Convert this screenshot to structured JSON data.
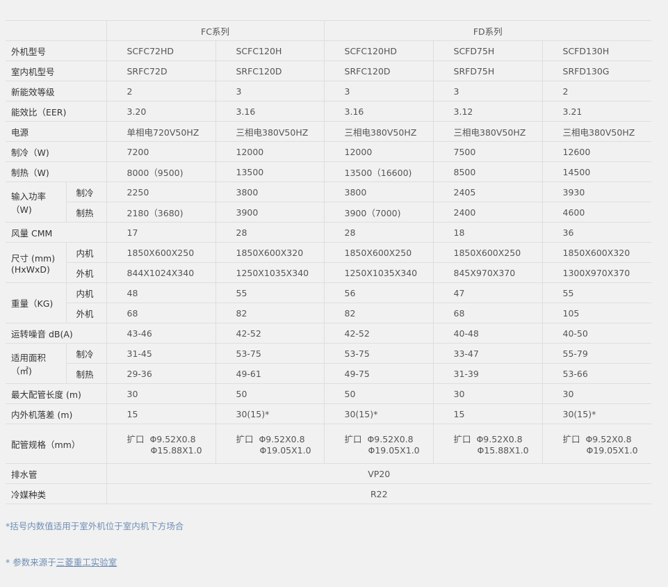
{
  "header": {
    "fc_series": "FC系列",
    "fd_series": "FD系列"
  },
  "rows": [
    {
      "label": "外机型号",
      "values": [
        "SCFC72HD",
        "SCFC120H",
        "SCFC120HD",
        "SCFD75H",
        "SCFD130H"
      ]
    },
    {
      "label": "室内机型号",
      "values": [
        "SRFC72D",
        "SRFC120D",
        "SRFC120D",
        "SRFD75H",
        "SRFD130G"
      ]
    },
    {
      "label": "新能效等级",
      "values": [
        "2",
        "3",
        "3",
        "3",
        "2"
      ]
    },
    {
      "label": "能效比（EER)",
      "values": [
        "3.20",
        "3.16",
        "3.16",
        "3.12",
        "3.21"
      ]
    },
    {
      "label": "电源",
      "values": [
        "单相电720V50HZ",
        "三相电380V50HZ",
        "三相电380V50HZ",
        "三相电380V50HZ",
        "三相电380V50HZ"
      ]
    },
    {
      "label": "制冷（W)",
      "values": [
        "7200",
        "12000",
        "12000",
        "7500",
        "12600"
      ]
    },
    {
      "label": "制热（W)",
      "values": [
        "8000（9500)",
        "13500",
        "13500（16600)",
        "8500",
        "14500"
      ]
    },
    {
      "label": "输入功率\n（W)",
      "subs": [
        {
          "label": "制冷",
          "values": [
            "2250",
            "3800",
            "3800",
            "2405",
            "3930"
          ]
        },
        {
          "label": "制热",
          "values": [
            "2180（3680)",
            "3900",
            "3900（7000)",
            "2400",
            "4600"
          ]
        }
      ]
    },
    {
      "label": "风量 CMM",
      "values": [
        "17",
        "28",
        "28",
        "18",
        "36"
      ]
    },
    {
      "label": "尺寸 (mm)\n(HxWxD)",
      "subs": [
        {
          "label": "内机",
          "values": [
            "1850X600X250",
            "1850X600X320",
            "1850X600X250",
            "1850X600X250",
            "1850X600X320"
          ]
        },
        {
          "label": "外机",
          "values": [
            "844X1024X340",
            "1250X1035X340",
            "1250X1035X340",
            "845X970X370",
            "1300X970X370"
          ]
        }
      ]
    },
    {
      "label": "重量（KG)",
      "subs": [
        {
          "label": "内机",
          "values": [
            "48",
            "55",
            "56",
            "47",
            "55"
          ]
        },
        {
          "label": "外机",
          "values": [
            "68",
            "82",
            "82",
            "68",
            "105"
          ]
        }
      ]
    },
    {
      "label": "运转噪音 dB(A)",
      "values": [
        "43-46",
        "42-52",
        "42-52",
        "40-48",
        "40-50"
      ]
    },
    {
      "label": "适用面积\n（㎡)",
      "subs": [
        {
          "label": "制冷",
          "values": [
            "31-45",
            "53-75",
            "53-75",
            "33-47",
            "55-79"
          ]
        },
        {
          "label": "制热",
          "values": [
            "29-36",
            "49-61",
            "49-75",
            "31-39",
            "53-66"
          ]
        }
      ]
    },
    {
      "label": "最大配管长度 (m)",
      "values": [
        "30",
        "50",
        "50",
        "30",
        "30"
      ]
    },
    {
      "label": "内外机落差 (m)",
      "values": [
        "15",
        "30(15)*",
        "30(15)*",
        "15",
        "30(15)*"
      ]
    }
  ],
  "pipe": {
    "label": "配管规格（mm）",
    "values": [
      {
        "line1": "扩口  Φ9.52X0.8",
        "line2": "Φ15.88X1.0"
      },
      {
        "line1": "扩口  Φ9.52X0.8",
        "line2": "Φ19.05X1.0"
      },
      {
        "line1": "扩口  Φ9.52X0.8",
        "line2": "Φ19.05X1.0"
      },
      {
        "line1": "扩口  Φ9.52X0.8",
        "line2": "Φ15.88X1.0"
      },
      {
        "line1": "扩口  Φ9.52X0.8",
        "line2": "Φ19.05X1.0"
      }
    ]
  },
  "drain": {
    "label": "排水管",
    "value": "VP20"
  },
  "refrigerant": {
    "label": "冷媒种类",
    "value": "R22"
  },
  "notes": {
    "bracket_note": "*括号内数值适用于室外机位于室内机下方场合",
    "source_prefix": "* 参数来源于",
    "source_link": "三菱重工实验室"
  },
  "colors": {
    "background": "#f1f1f1",
    "border": "#dedede",
    "note": "#6f8fb5"
  }
}
